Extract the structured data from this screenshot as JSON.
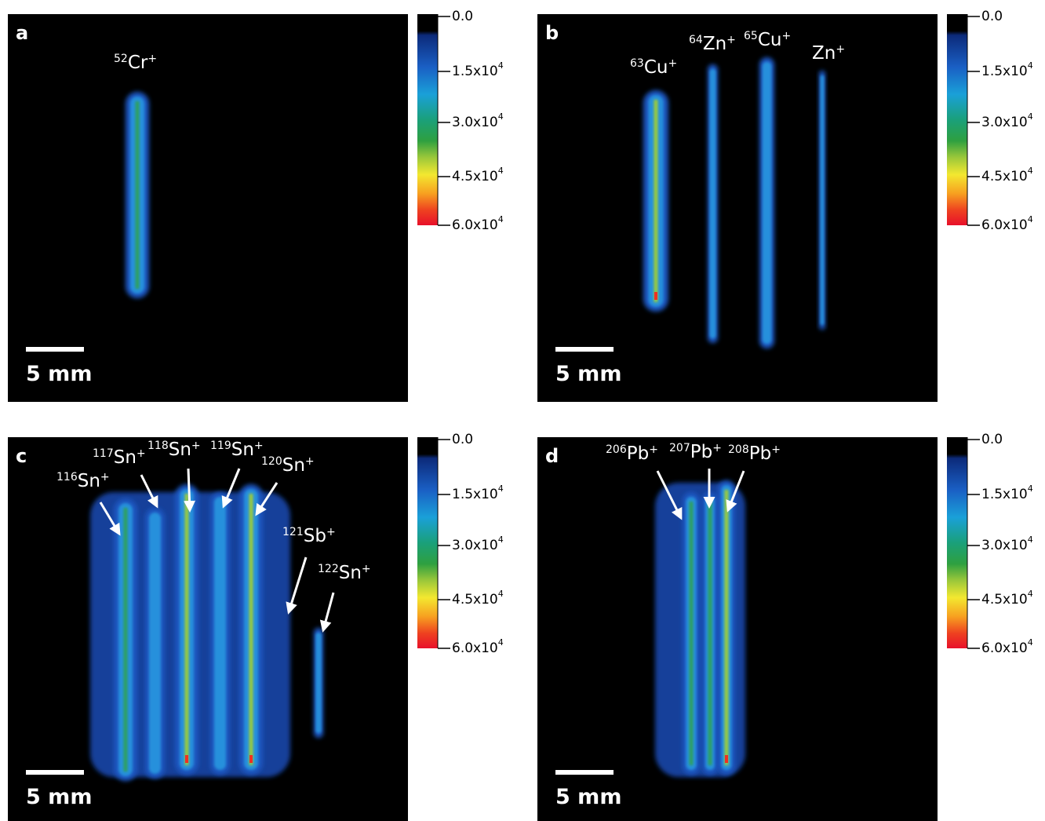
{
  "panels": [
    {
      "letter": "a",
      "ions": [
        {
          "mass": "52",
          "element": "Cr",
          "charge": "+"
        }
      ],
      "scale_bar": "5 mm",
      "colorbar": {
        "ticks": [
          {
            "mantissa": "0.0"
          },
          {
            "mantissa": "1.5x10",
            "exponent": "4"
          },
          {
            "mantissa": "3.0x10",
            "exponent": "4"
          },
          {
            "mantissa": "4.5x10",
            "exponent": "4"
          },
          {
            "mantissa": "6.0x10",
            "exponent": "4"
          }
        ]
      }
    },
    {
      "letter": "b",
      "ions": [
        {
          "mass": "63",
          "element": "Cu",
          "charge": "+"
        },
        {
          "mass": "64",
          "element": "Zn",
          "charge": "+"
        },
        {
          "mass": "65",
          "element": "Cu",
          "charge": "+"
        },
        {
          "element": "Zn",
          "charge": "+"
        }
      ],
      "scale_bar": "5 mm",
      "colorbar": {
        "ticks": [
          {
            "mantissa": "0.0"
          },
          {
            "mantissa": "1.5x10",
            "exponent": "4"
          },
          {
            "mantissa": "3.0x10",
            "exponent": "4"
          },
          {
            "mantissa": "4.5x10",
            "exponent": "4"
          },
          {
            "mantissa": "6.0x10",
            "exponent": "4"
          }
        ]
      }
    },
    {
      "letter": "c",
      "ions": [
        {
          "mass": "116",
          "element": "Sn",
          "charge": "+"
        },
        {
          "mass": "117",
          "element": "Sn",
          "charge": "+"
        },
        {
          "mass": "118",
          "element": "Sn",
          "charge": "+"
        },
        {
          "mass": "119",
          "element": "Sn",
          "charge": "+"
        },
        {
          "mass": "120",
          "element": "Sn",
          "charge": "+"
        },
        {
          "mass": "121",
          "element": "Sb",
          "charge": "+"
        },
        {
          "mass": "122",
          "element": "Sn",
          "charge": "+"
        }
      ],
      "scale_bar": "5 mm",
      "colorbar": {
        "ticks": [
          {
            "mantissa": "0.0"
          },
          {
            "mantissa": "1.5x10",
            "exponent": "4"
          },
          {
            "mantissa": "3.0x10",
            "exponent": "4"
          },
          {
            "mantissa": "4.5x10",
            "exponent": "4"
          },
          {
            "mantissa": "6.0x10",
            "exponent": "4"
          }
        ]
      }
    },
    {
      "letter": "d",
      "ions": [
        {
          "mass": "206",
          "element": "Pb",
          "charge": "+"
        },
        {
          "mass": "207",
          "element": "Pb",
          "charge": "+"
        },
        {
          "mass": "208",
          "element": "Pb",
          "charge": "+"
        }
      ],
      "scale_bar": "5 mm",
      "colorbar": {
        "ticks": [
          {
            "mantissa": "0.0"
          },
          {
            "mantissa": "1.5x10",
            "exponent": "4"
          },
          {
            "mantissa": "3.0x10",
            "exponent": "4"
          },
          {
            "mantissa": "4.5x10",
            "exponent": "4"
          },
          {
            "mantissa": "6.0x10",
            "exponent": "4"
          }
        ]
      }
    }
  ]
}
